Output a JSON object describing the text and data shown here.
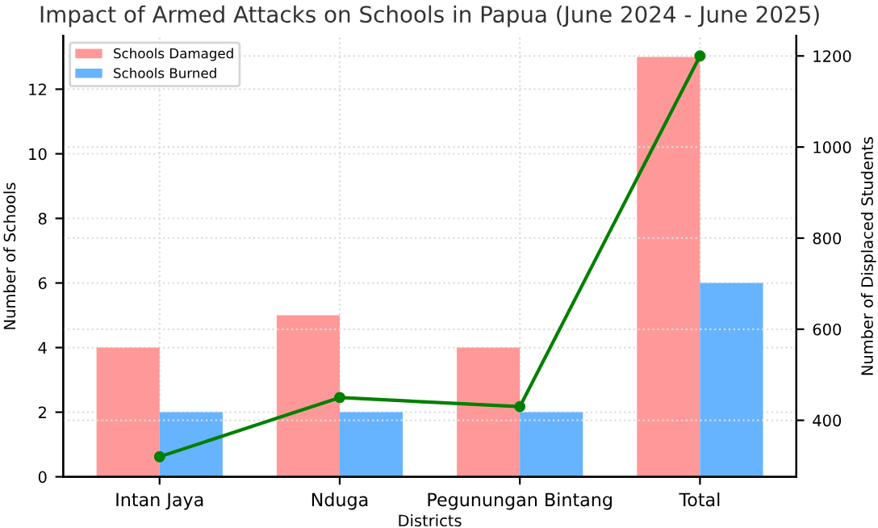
{
  "chart_data": {
    "type": "bar",
    "title": "Impact of Armed Attacks on Schools in Papua (June 2024 - June 2025)",
    "xlabel": "Districts",
    "ylabel": "Number of Schools",
    "y2label": "Number of Displaced Students",
    "categories": [
      "Intan Jaya",
      "Nduga",
      "Pegunungan Bintang",
      "Total"
    ],
    "series": [
      {
        "name": "Schools Damaged",
        "color": "#ff9999",
        "values": [
          4,
          5,
          4,
          13
        ]
      },
      {
        "name": "Schools Burned",
        "color": "#66b3ff",
        "values": [
          2,
          2,
          2,
          6
        ]
      },
      {
        "type": "line",
        "axis": "y2",
        "color": "#008000",
        "marker": "circle",
        "values": [
          320,
          450,
          430,
          1200
        ]
      }
    ],
    "ylim": [
      0,
      13.65
    ],
    "yticks": [
      0,
      2,
      4,
      6,
      8,
      10,
      12
    ],
    "y2lim": [
      276,
      1244
    ],
    "y2ticks": [
      400,
      600,
      800,
      1000,
      1200
    ],
    "grid": true,
    "legend": "top left"
  }
}
